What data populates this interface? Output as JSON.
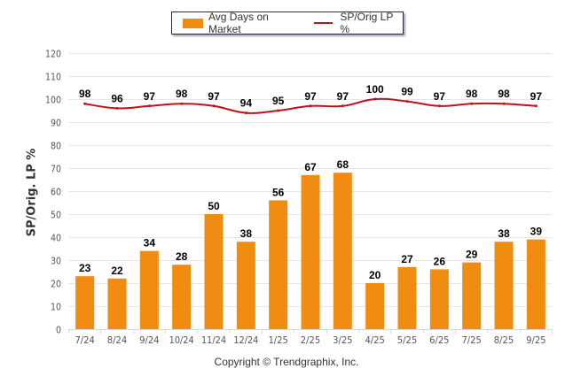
{
  "chart_data": {
    "type": "bar",
    "title": "",
    "xlabel": "",
    "ylabel": "SP/Orig. LP %",
    "ylim": [
      0,
      120
    ],
    "yticks": [
      0,
      10,
      20,
      30,
      40,
      50,
      60,
      70,
      80,
      90,
      100,
      110,
      120
    ],
    "grid": true,
    "legend_position": "top-center",
    "categories": [
      "7/24",
      "8/24",
      "9/24",
      "10/24",
      "11/24",
      "12/24",
      "1/25",
      "2/25",
      "3/25",
      "4/25",
      "5/25",
      "6/25",
      "7/25",
      "8/25",
      "9/25"
    ],
    "series": [
      {
        "name": "Avg Days on Market",
        "type": "bar",
        "color": "#f08c12",
        "values": [
          23,
          22,
          34,
          28,
          50,
          38,
          56,
          67,
          68,
          20,
          27,
          26,
          29,
          38,
          39
        ]
      },
      {
        "name": "SP/Orig LP %",
        "type": "line",
        "color": "#c0101a",
        "values": [
          98,
          96,
          97,
          98,
          97,
          94,
          95,
          97,
          97,
          100,
          99,
          97,
          98,
          98,
          97
        ]
      }
    ]
  },
  "copyright": "Copyright © Trendgraphix, Inc."
}
